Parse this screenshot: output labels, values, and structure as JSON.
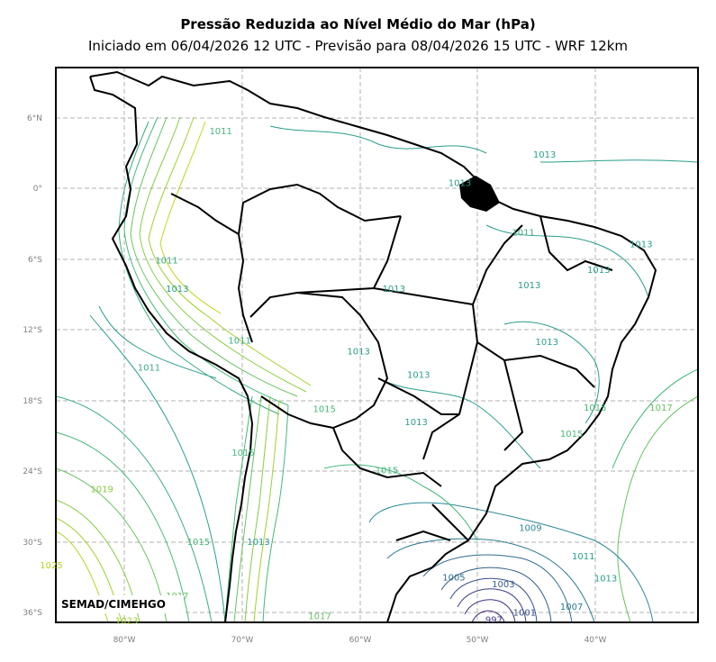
{
  "title": "Pressão Reduzida ao Nível Médio do Mar (hPa)",
  "subtitle": "Iniciado em 06/04/2026 12 UTC - Previsão para 08/04/2026 15 UTC - WRF 12km",
  "credit": "SEMAD/CIMEHGO",
  "lat_ticks": [
    "6°N",
    "0°",
    "6°S",
    "12°S",
    "18°S",
    "24°S",
    "30°S",
    "36°S"
  ],
  "lon_ticks": [
    "80°W",
    "70°W",
    "60°W",
    "50°W",
    "40°W"
  ],
  "contour_labels": [
    {
      "text": "1011",
      "lon": -71.8,
      "lat": 4.9,
      "color": "#45b87a"
    },
    {
      "text": "1013",
      "lon": -44.3,
      "lat": 2.9,
      "color": "#2a9d8c"
    },
    {
      "text": "1013",
      "lon": -51.5,
      "lat": 0.5,
      "color": "#2a9d8c"
    },
    {
      "text": "1011",
      "lon": -46.1,
      "lat": -3.7,
      "color": "#3aad80"
    },
    {
      "text": "1013",
      "lon": -36.1,
      "lat": -4.7,
      "color": "#2a9d8c"
    },
    {
      "text": "1013",
      "lon": -39.7,
      "lat": -6.9,
      "color": "#2a9d8c"
    },
    {
      "text": "1011",
      "lon": -76.4,
      "lat": -6.1,
      "color": "#3aad80"
    },
    {
      "text": "1013",
      "lon": -75.5,
      "lat": -8.5,
      "color": "#2a9d8c"
    },
    {
      "text": "1013",
      "lon": -57.1,
      "lat": -8.5,
      "color": "#2a9d8c"
    },
    {
      "text": "1013",
      "lon": -45.6,
      "lat": -8.2,
      "color": "#2a9d8c"
    },
    {
      "text": "1013",
      "lon": -44.1,
      "lat": -13.0,
      "color": "#2a9d8c"
    },
    {
      "text": "1011",
      "lon": -77.9,
      "lat": -15.2,
      "color": "#3aad80"
    },
    {
      "text": "1011",
      "lon": -70.2,
      "lat": -12.9,
      "color": "#3aad80"
    },
    {
      "text": "1013",
      "lon": -60.1,
      "lat": -13.8,
      "color": "#2a9d8c"
    },
    {
      "text": "1013",
      "lon": -55.0,
      "lat": -15.8,
      "color": "#2a9d8c"
    },
    {
      "text": "1013",
      "lon": -55.2,
      "lat": -19.8,
      "color": "#2a9d8c"
    },
    {
      "text": "1015",
      "lon": -40.0,
      "lat": -18.6,
      "color": "#45b87a"
    },
    {
      "text": "1017",
      "lon": -34.4,
      "lat": -18.6,
      "color": "#67c25f"
    },
    {
      "text": "1015",
      "lon": -42.0,
      "lat": -20.8,
      "color": "#45b87a"
    },
    {
      "text": "1015",
      "lon": -63.0,
      "lat": -18.7,
      "color": "#45b87a"
    },
    {
      "text": "1015",
      "lon": -69.9,
      "lat": -22.4,
      "color": "#45b87a"
    },
    {
      "text": "1015",
      "lon": -57.7,
      "lat": -23.9,
      "color": "#45b87a"
    },
    {
      "text": "1019",
      "lon": -81.9,
      "lat": -25.5,
      "color": "#85cc43"
    },
    {
      "text": "1009",
      "lon": -45.5,
      "lat": -28.8,
      "color": "#2a8898"
    },
    {
      "text": "1015",
      "lon": -73.7,
      "lat": -30.0,
      "color": "#45b87a"
    },
    {
      "text": "1013",
      "lon": -68.6,
      "lat": -30.0,
      "color": "#2a9d8c"
    },
    {
      "text": "1011",
      "lon": -41.0,
      "lat": -31.2,
      "color": "#2a9d8c"
    },
    {
      "text": "1025",
      "lon": -86.2,
      "lat": -32.0,
      "color": "#b8d124"
    },
    {
      "text": "1005",
      "lon": -52.0,
      "lat": -33.0,
      "color": "#2f6c8e"
    },
    {
      "text": "1003",
      "lon": -47.8,
      "lat": -33.6,
      "color": "#335e8c"
    },
    {
      "text": "1013",
      "lon": -39.1,
      "lat": -33.1,
      "color": "#2a9d8c"
    },
    {
      "text": "1017",
      "lon": -75.5,
      "lat": -34.6,
      "color": "#67c25f"
    },
    {
      "text": "1007",
      "lon": -42.0,
      "lat": -35.5,
      "color": "#2a7b91"
    },
    {
      "text": "1001",
      "lon": -46.0,
      "lat": -36.0,
      "color": "#39508a"
    },
    {
      "text": "997",
      "lon": -48.6,
      "lat": -36.6,
      "color": "#433783"
    },
    {
      "text": "1017",
      "lon": -63.4,
      "lat": -36.3,
      "color": "#67c25f"
    },
    {
      "text": "1023",
      "lon": -79.8,
      "lat": -36.7,
      "color": "#a2cf2e"
    }
  ],
  "colors": {
    "frame": "#000000",
    "grid": "#b0b0b0",
    "borders": "#000000",
    "low_pressure": "#433783",
    "mid_pressure": "#2a9d8c",
    "high_pressure": "#b8d124"
  }
}
